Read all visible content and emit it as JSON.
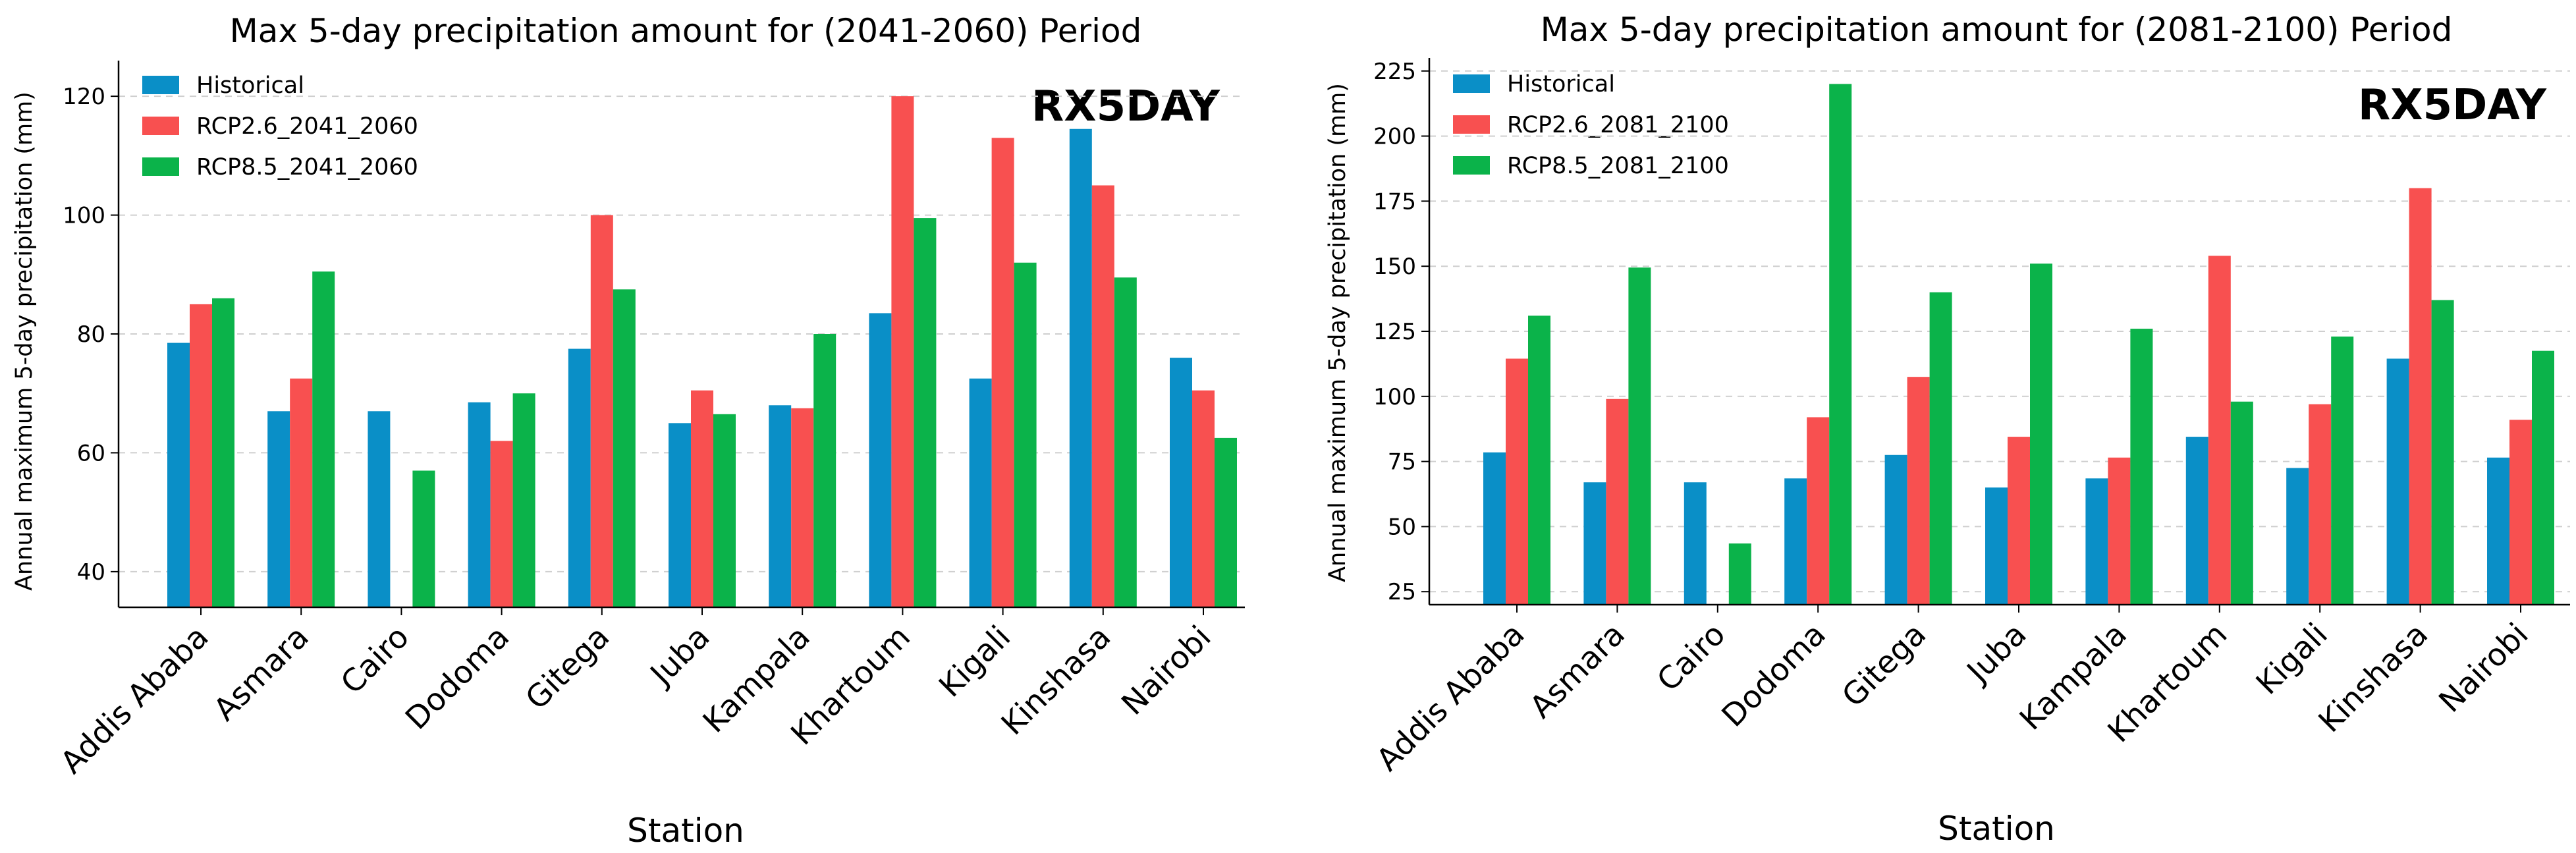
{
  "chart_data": [
    {
      "type": "bar",
      "title": "Max 5-day precipitation amount for (2041-2060) Period",
      "xlabel": "Station",
      "ylabel": "Annual maximum 5-day precipitation (mm)",
      "annotation": "RX5DAY",
      "ylim": [
        34,
        126
      ],
      "yticks": [
        40,
        60,
        80,
        100,
        120
      ],
      "grid": "y-dashed",
      "legend_position": "upper-left",
      "categories": [
        "Addis Ababa",
        "Asmara",
        "Cairo",
        "Dodoma",
        "Gitega",
        "Juba",
        "Kampala",
        "Khartoum",
        "Kigali",
        "Kinshasa",
        "Nairobi"
      ],
      "series": [
        {
          "name": "Historical",
          "color": "#0a8fc7",
          "values": [
            78.5,
            67,
            67,
            68.5,
            77.5,
            65,
            68,
            83.5,
            72.5,
            114.5,
            76
          ]
        },
        {
          "name": "RCP2.6_2041_2060",
          "color": "#f85050",
          "values": [
            85,
            72.5,
            34,
            62,
            100,
            70.5,
            67.5,
            120,
            113,
            105,
            70.5
          ]
        },
        {
          "name": "RCP8.5_2041_2060",
          "color": "#0bb34a",
          "values": [
            86,
            90.5,
            57,
            70,
            87.5,
            66.5,
            80,
            99.5,
            92,
            89.5,
            62.5
          ]
        }
      ]
    },
    {
      "type": "bar",
      "title": "Max 5-day precipitation amount for (2081-2100) Period",
      "xlabel": "Station",
      "ylabel": "Annual maximum 5-day precipitation (mm)",
      "annotation": "RX5DAY",
      "ylim": [
        20,
        230
      ],
      "yticks": [
        25,
        50,
        75,
        100,
        125,
        150,
        175,
        200,
        225
      ],
      "grid": "y-dashed",
      "legend_position": "upper-left",
      "categories": [
        "Addis Ababa",
        "Asmara",
        "Cairo",
        "Dodoma",
        "Gitega",
        "Juba",
        "Kampala",
        "Khartoum",
        "Kigali",
        "Kinshasa",
        "Nairobi"
      ],
      "series": [
        {
          "name": "Historical",
          "color": "#0a8fc7",
          "values": [
            78.5,
            67,
            67,
            68.5,
            77.5,
            65,
            68.5,
            84.5,
            72.5,
            114.5,
            76.5
          ]
        },
        {
          "name": "RCP2.6_2081_2100",
          "color": "#f85050",
          "values": [
            114.5,
            99,
            20,
            92,
            107.5,
            84.5,
            76.5,
            154,
            97,
            180,
            91
          ]
        },
        {
          "name": "RCP8.5_2081_2100",
          "color": "#0bb34a",
          "values": [
            131,
            149.5,
            43.5,
            220,
            140,
            151,
            126,
            98,
            123,
            137,
            117.5
          ]
        }
      ]
    }
  ]
}
